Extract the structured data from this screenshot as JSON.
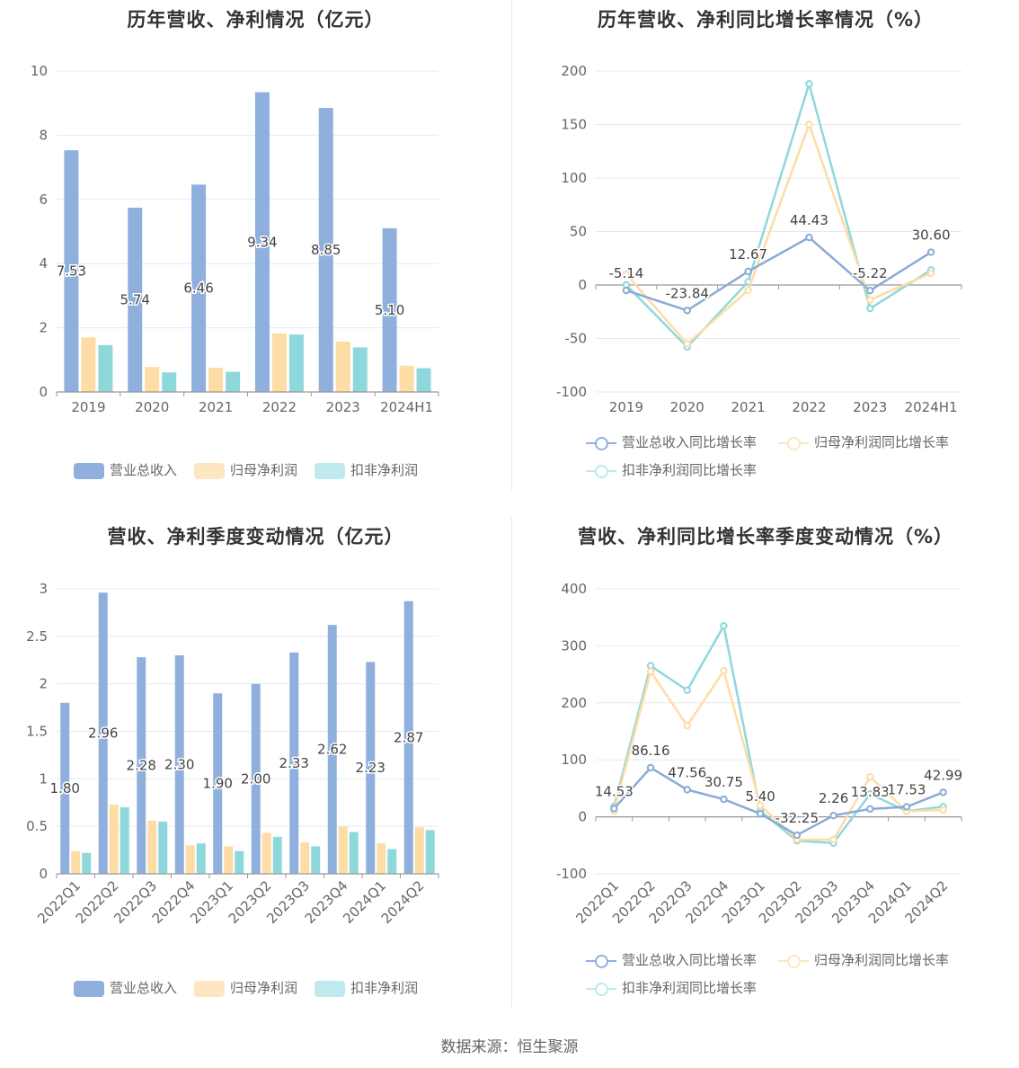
{
  "source": "数据来源：恒生聚源",
  "colors": {
    "revenue": "#8fb0dd",
    "net_profit": "#fedca5",
    "deducted": "#8ed8dc"
  },
  "charts": [
    {
      "id": "annual-bar",
      "title": "历年营收、净利情况（亿元）",
      "legend": [
        "营业总收入",
        "归母净利润",
        "扣非净利润"
      ],
      "chart_data": {
        "type": "bar",
        "categories": [
          "2019",
          "2020",
          "2021",
          "2022",
          "2023",
          "2024H1"
        ],
        "series": [
          {
            "name": "营业总收入",
            "values": [
              7.53,
              5.74,
              6.46,
              9.34,
              8.85,
              5.1
            ],
            "labels": [
              "7.53",
              "5.74",
              "6.46",
              "9.34",
              "8.85",
              "5.10"
            ]
          },
          {
            "name": "归母净利润",
            "values": [
              1.7,
              0.78,
              0.75,
              1.82,
              1.57,
              0.82
            ]
          },
          {
            "name": "扣非净利润",
            "values": [
              1.46,
              0.61,
              0.63,
              1.79,
              1.39,
              0.74
            ]
          }
        ],
        "yticks": [
          "0",
          "2",
          "4",
          "6",
          "8",
          "10"
        ],
        "ylim": [
          0,
          10
        ]
      }
    },
    {
      "id": "annual-line",
      "title": "历年营收、净利同比增长率情况（%）",
      "legend": [
        "营业总收入同比增长率",
        "归母净利润同比增长率",
        "扣非净利润同比增长率"
      ],
      "chart_data": {
        "type": "line",
        "categories": [
          "2019",
          "2020",
          "2021",
          "2022",
          "2023",
          "2024H1"
        ],
        "series": [
          {
            "name": "营业总收入同比增长率",
            "values": [
              -5.14,
              -23.84,
              12.67,
              44.43,
              -5.22,
              30.6
            ],
            "labels": [
              "-5.14",
              "-23.84",
              "12.67",
              "44.43",
              "-5.22",
              "30.60"
            ]
          },
          {
            "name": "归母净利润同比增长率",
            "values": [
              10,
              -55,
              -5,
              150,
              -14,
              11
            ]
          },
          {
            "name": "扣非净利润同比增长率",
            "values": [
              0,
              -58,
              3,
              188,
              -22,
              14
            ]
          }
        ],
        "yticks": [
          "-100",
          "-50",
          "0",
          "50",
          "100",
          "150",
          "200"
        ],
        "ylim": [
          -100,
          200
        ]
      }
    },
    {
      "id": "quarter-bar",
      "title": "营收、净利季度变动情况（亿元）",
      "legend": [
        "营业总收入",
        "归母净利润",
        "扣非净利润"
      ],
      "chart_data": {
        "type": "bar",
        "categories": [
          "2022Q1",
          "2022Q2",
          "2022Q3",
          "2022Q4",
          "2023Q1",
          "2023Q2",
          "2023Q3",
          "2023Q4",
          "2024Q1",
          "2024Q2"
        ],
        "series": [
          {
            "name": "营业总收入",
            "values": [
              1.8,
              2.96,
              2.28,
              2.3,
              1.9,
              2.0,
              2.33,
              2.62,
              2.23,
              2.87
            ],
            "labels": [
              "1.80",
              "2.96",
              "2.28",
              "2.30",
              "1.90",
              "2.00",
              "2.33",
              "2.62",
              "2.23",
              "2.87"
            ]
          },
          {
            "name": "归母净利润",
            "values": [
              0.24,
              0.73,
              0.56,
              0.3,
              0.29,
              0.43,
              0.33,
              0.5,
              0.32,
              0.49
            ]
          },
          {
            "name": "扣非净利润",
            "values": [
              0.22,
              0.7,
              0.55,
              0.32,
              0.24,
              0.39,
              0.29,
              0.44,
              0.26,
              0.46
            ]
          }
        ],
        "yticks": [
          "0",
          "0.5",
          "1",
          "1.5",
          "2",
          "2.5",
          "3"
        ],
        "ylim": [
          0,
          3
        ]
      }
    },
    {
      "id": "quarter-line",
      "title": "营收、净利同比增长率季度变动情况（%）",
      "legend": [
        "营业总收入同比增长率",
        "归母净利润同比增长率",
        "扣非净利润同比增长率"
      ],
      "chart_data": {
        "type": "line",
        "categories": [
          "2022Q1",
          "2022Q2",
          "2022Q3",
          "2022Q4",
          "2023Q1",
          "2023Q2",
          "2023Q3",
          "2023Q4",
          "2024Q1",
          "2024Q2"
        ],
        "series": [
          {
            "name": "营业总收入同比增长率",
            "values": [
              14.53,
              86.16,
              47.56,
              30.75,
              5.4,
              -32.25,
              2.26,
              13.83,
              17.53,
              42.99
            ],
            "labels": [
              "14.53",
              "86.16",
              "47.56",
              "30.75",
              "5.40",
              "-32.25",
              "2.26",
              "13.83",
              "17.53",
              "42.99"
            ]
          },
          {
            "name": "归母净利润同比增长率",
            "values": [
              10,
              255,
              160,
              256,
              20,
              -40,
              -40,
              70,
              10,
              12
            ]
          },
          {
            "name": "扣非净利润同比增长率",
            "values": [
              18,
              265,
              222,
              335,
              10,
              -42,
              -46,
              40,
              10,
              18
            ]
          }
        ],
        "yticks": [
          "-100",
          "0",
          "100",
          "200",
          "300",
          "400"
        ],
        "ylim": [
          -100,
          400
        ]
      }
    }
  ]
}
